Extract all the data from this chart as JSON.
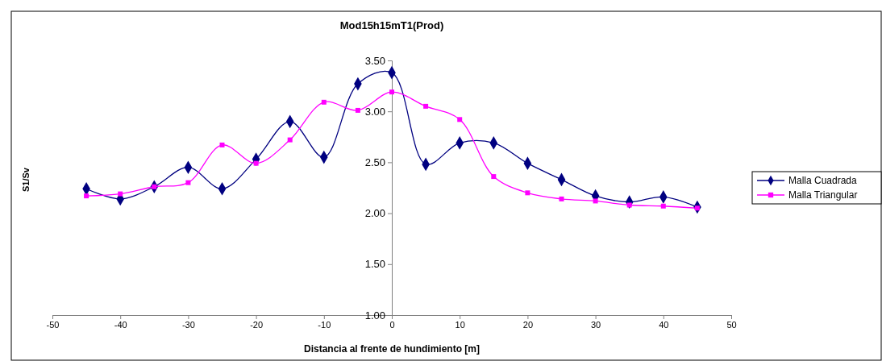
{
  "chart_data": {
    "type": "line",
    "title": "Mod15h15mT1(Prod)",
    "xlabel": "Distancia al frente de hundimiento [m]",
    "ylabel": "S1/Sv",
    "x": [
      -45,
      -40,
      -35,
      -30,
      -25,
      -20,
      -15,
      -10,
      -5,
      0,
      5,
      10,
      15,
      20,
      25,
      30,
      35,
      40,
      45
    ],
    "xlim": [
      -50,
      50
    ],
    "xticks": [
      -50,
      -40,
      -30,
      -20,
      -10,
      0,
      10,
      20,
      30,
      40,
      50
    ],
    "ylim": [
      1,
      3.5
    ],
    "yticks": [
      {
        "value": 1,
        "label": "1.00"
      },
      {
        "value": 1.5,
        "label": "1.50"
      },
      {
        "value": 2,
        "label": "2.00"
      },
      {
        "value": 2.5,
        "label": "2.50"
      },
      {
        "value": 3,
        "label": "3.00"
      },
      {
        "value": 3.5,
        "label": "3.50"
      }
    ],
    "grid": false,
    "legend": "right",
    "line_style": "solid",
    "series": [
      {
        "name": "Malla Cuadrada",
        "color": "#000080",
        "marker": "diamond",
        "values": [
          2.24,
          2.14,
          2.26,
          2.45,
          2.24,
          2.53,
          2.9,
          2.55,
          3.27,
          3.38,
          2.48,
          2.69,
          2.69,
          2.49,
          2.33,
          2.17,
          2.11,
          2.16,
          2.06
        ]
      },
      {
        "name": "Malla Triangular",
        "color": "#ff00ff",
        "marker": "square",
        "values": [
          2.17,
          2.19,
          2.26,
          2.3,
          2.67,
          2.49,
          2.72,
          3.09,
          3.01,
          3.19,
          3.05,
          2.92,
          2.36,
          2.2,
          2.14,
          2.12,
          2.08,
          2.07,
          2.05
        ]
      }
    ]
  }
}
